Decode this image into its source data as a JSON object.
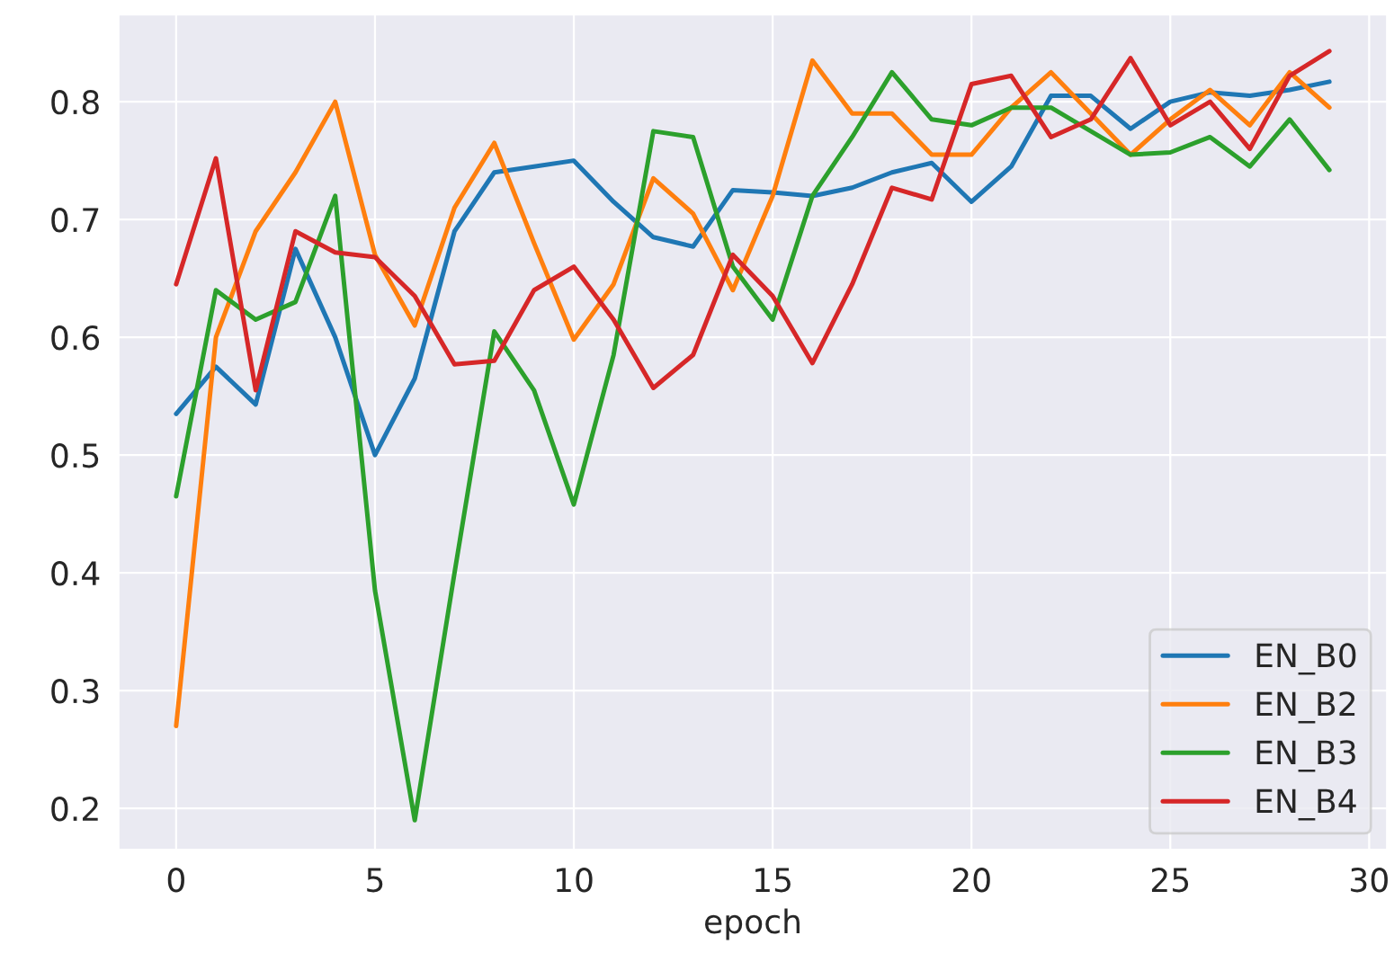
{
  "chart_data": {
    "type": "line",
    "xlabel": "epoch",
    "x": [
      0,
      1,
      2,
      3,
      4,
      5,
      6,
      7,
      8,
      9,
      10,
      11,
      12,
      13,
      14,
      15,
      16,
      17,
      18,
      19,
      20,
      21,
      22,
      23,
      24,
      25,
      26,
      27,
      28,
      29
    ],
    "series": [
      {
        "name": "EN_B0",
        "color": "#1f77b4",
        "values": [
          0.535,
          0.575,
          0.543,
          0.675,
          0.6,
          0.5,
          0.565,
          0.69,
          0.74,
          0.745,
          0.75,
          0.715,
          0.685,
          0.677,
          0.725,
          0.723,
          0.72,
          0.727,
          0.74,
          0.748,
          0.715,
          0.745,
          0.805,
          0.805,
          0.777,
          0.8,
          0.808,
          0.805,
          0.81,
          0.817
        ]
      },
      {
        "name": "EN_B2",
        "color": "#ff7f0e",
        "values": [
          0.27,
          0.6,
          0.69,
          0.74,
          0.8,
          0.67,
          0.61,
          0.71,
          0.765,
          0.68,
          0.598,
          0.645,
          0.735,
          0.705,
          0.64,
          0.72,
          0.835,
          0.79,
          0.79,
          0.755,
          0.755,
          0.795,
          0.825,
          0.79,
          0.755,
          0.785,
          0.81,
          0.78,
          0.825,
          0.795
        ]
      },
      {
        "name": "EN_B3",
        "color": "#2ca02c",
        "values": [
          0.465,
          0.64,
          0.615,
          0.63,
          0.72,
          0.385,
          0.19,
          0.4,
          0.605,
          0.555,
          0.458,
          0.585,
          0.775,
          0.77,
          0.66,
          0.615,
          0.72,
          0.77,
          0.825,
          0.785,
          0.78,
          0.795,
          0.795,
          0.775,
          0.755,
          0.757,
          0.77,
          0.745,
          0.785,
          0.742
        ]
      },
      {
        "name": "EN_B4",
        "color": "#d62728",
        "values": [
          0.645,
          0.752,
          0.555,
          0.69,
          0.672,
          0.668,
          0.635,
          0.577,
          0.58,
          0.64,
          0.66,
          0.615,
          0.557,
          0.585,
          0.67,
          0.635,
          0.578,
          0.645,
          0.727,
          0.717,
          0.815,
          0.822,
          0.77,
          0.785,
          0.837,
          0.78,
          0.8,
          0.76,
          0.822,
          0.843
        ]
      }
    ],
    "xlim": [
      -1.45,
      30.45
    ],
    "ylim": [
      0.165,
      0.874
    ],
    "xticks": [
      0,
      5,
      10,
      15,
      20,
      25,
      30
    ],
    "yticks": [
      0.2,
      0.3,
      0.4,
      0.5,
      0.6,
      0.7,
      0.8
    ],
    "grid": true,
    "legend": "bottom right"
  }
}
